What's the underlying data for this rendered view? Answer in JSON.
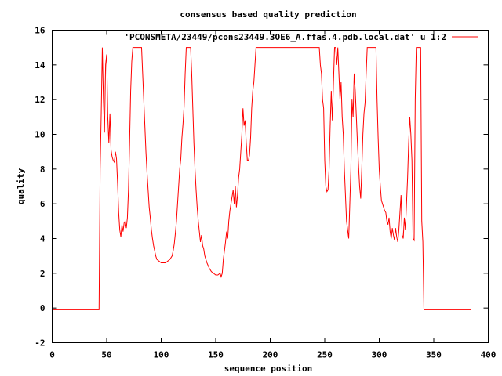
{
  "chart_data": {
    "type": "line",
    "title": "consensus based quality prediction",
    "xlabel": "sequence position",
    "ylabel": "quality",
    "xlim": [
      0,
      400
    ],
    "ylim": [
      -2,
      16
    ],
    "xticks": [
      0,
      50,
      100,
      150,
      200,
      250,
      300,
      350,
      400
    ],
    "yticks": [
      -2,
      0,
      2,
      4,
      6,
      8,
      10,
      12,
      14,
      16
    ],
    "grid": false,
    "legend_position": "top-right",
    "series": [
      {
        "name": "'PCONSMETA/23449/pcons23449.3OE6_A.ffas.4.pdb.local.dat' u 1:2",
        "color": "#ff0000",
        "points": [
          [
            1,
            -0.1
          ],
          [
            43,
            -0.1
          ],
          [
            44,
            8.0
          ],
          [
            45,
            11.2
          ],
          [
            46,
            15.0
          ],
          [
            47,
            12.0
          ],
          [
            48,
            10.1
          ],
          [
            49,
            14.0
          ],
          [
            50,
            14.6
          ],
          [
            51,
            11.0
          ],
          [
            52,
            9.5
          ],
          [
            53,
            11.2
          ],
          [
            54,
            9.1
          ],
          [
            55,
            8.7
          ],
          [
            56,
            8.5
          ],
          [
            57,
            8.4
          ],
          [
            58,
            9.0
          ],
          [
            59,
            8.6
          ],
          [
            60,
            7.2
          ],
          [
            61,
            5.5
          ],
          [
            62,
            4.5
          ],
          [
            63,
            4.1
          ],
          [
            64,
            4.8
          ],
          [
            65,
            4.4
          ],
          [
            66,
            4.9
          ],
          [
            67,
            5.0
          ],
          [
            68,
            4.6
          ],
          [
            69,
            5.2
          ],
          [
            70,
            6.8
          ],
          [
            71,
            9.5
          ],
          [
            72,
            12.5
          ],
          [
            73,
            14.2
          ],
          [
            74,
            15.0
          ],
          [
            77,
            15.0
          ],
          [
            80,
            15.0
          ],
          [
            82,
            15.0
          ],
          [
            83,
            13.5
          ],
          [
            84,
            12.0
          ],
          [
            85,
            10.5
          ],
          [
            86,
            9.0
          ],
          [
            87,
            7.8
          ],
          [
            88,
            6.8
          ],
          [
            89,
            5.8
          ],
          [
            90,
            5.2
          ],
          [
            91,
            4.5
          ],
          [
            92,
            4.0
          ],
          [
            93,
            3.6
          ],
          [
            94,
            3.3
          ],
          [
            95,
            3.0
          ],
          [
            96,
            2.8
          ],
          [
            98,
            2.7
          ],
          [
            100,
            2.6
          ],
          [
            102,
            2.6
          ],
          [
            104,
            2.6
          ],
          [
            106,
            2.7
          ],
          [
            108,
            2.8
          ],
          [
            110,
            3.0
          ],
          [
            111,
            3.3
          ],
          [
            112,
            3.7
          ],
          [
            113,
            4.3
          ],
          [
            114,
            5.0
          ],
          [
            115,
            6.0
          ],
          [
            116,
            7.0
          ],
          [
            117,
            8.0
          ],
          [
            118,
            8.6
          ],
          [
            119,
            9.8
          ],
          [
            120,
            10.6
          ],
          [
            121,
            11.6
          ],
          [
            122,
            13.5
          ],
          [
            123,
            15.0
          ],
          [
            125,
            15.0
          ],
          [
            127,
            15.0
          ],
          [
            128,
            13.5
          ],
          [
            129,
            11.5
          ],
          [
            130,
            9.5
          ],
          [
            131,
            8.0
          ],
          [
            132,
            6.8
          ],
          [
            133,
            5.8
          ],
          [
            134,
            5.0
          ],
          [
            135,
            4.4
          ],
          [
            136,
            3.8
          ],
          [
            137,
            4.2
          ],
          [
            138,
            3.6
          ],
          [
            139,
            3.4
          ],
          [
            140,
            3.0
          ],
          [
            142,
            2.6
          ],
          [
            144,
            2.3
          ],
          [
            146,
            2.1
          ],
          [
            148,
            2.0
          ],
          [
            150,
            1.9
          ],
          [
            152,
            1.9
          ],
          [
            154,
            2.0
          ],
          [
            155,
            1.8
          ],
          [
            156,
            2.0
          ],
          [
            157,
            2.8
          ],
          [
            158,
            3.3
          ],
          [
            159,
            3.8
          ],
          [
            160,
            4.4
          ],
          [
            161,
            4.0
          ],
          [
            162,
            5.0
          ],
          [
            163,
            5.6
          ],
          [
            164,
            6.0
          ],
          [
            165,
            6.4
          ],
          [
            166,
            6.8
          ],
          [
            167,
            6.0
          ],
          [
            168,
            7.0
          ],
          [
            169,
            5.8
          ],
          [
            170,
            6.5
          ],
          [
            171,
            7.5
          ],
          [
            172,
            8.0
          ],
          [
            173,
            9.0
          ],
          [
            174,
            10.0
          ],
          [
            175,
            11.5
          ],
          [
            176,
            10.5
          ],
          [
            177,
            10.8
          ],
          [
            178,
            9.5
          ],
          [
            179,
            8.5
          ],
          [
            180,
            8.5
          ],
          [
            181,
            8.8
          ],
          [
            182,
            9.8
          ],
          [
            183,
            11.5
          ],
          [
            184,
            12.5
          ],
          [
            185,
            13.0
          ],
          [
            186,
            14.0
          ],
          [
            187,
            15.0
          ],
          [
            190,
            15.0
          ],
          [
            200,
            15.0
          ],
          [
            210,
            15.0
          ],
          [
            220,
            15.0
          ],
          [
            230,
            15.0
          ],
          [
            240,
            15.0
          ],
          [
            245,
            15.0
          ],
          [
            246,
            14.0
          ],
          [
            247,
            13.5
          ],
          [
            248,
            12.0
          ],
          [
            249,
            11.5
          ],
          [
            250,
            8.5
          ],
          [
            251,
            7.0
          ],
          [
            252,
            6.7
          ],
          [
            253,
            6.8
          ],
          [
            254,
            8.0
          ],
          [
            255,
            10.5
          ],
          [
            256,
            12.5
          ],
          [
            257,
            10.8
          ],
          [
            258,
            13.0
          ],
          [
            259,
            15.0
          ],
          [
            260,
            15.0
          ],
          [
            261,
            14.0
          ],
          [
            262,
            15.0
          ],
          [
            263,
            13.5
          ],
          [
            264,
            12.0
          ],
          [
            265,
            13.0
          ],
          [
            266,
            11.0
          ],
          [
            267,
            10.0
          ],
          [
            268,
            8.0
          ],
          [
            269,
            6.5
          ],
          [
            270,
            5.0
          ],
          [
            271,
            4.5
          ],
          [
            272,
            4.0
          ],
          [
            273,
            6.0
          ],
          [
            274,
            8.0
          ],
          [
            275,
            12.0
          ],
          [
            276,
            11.0
          ],
          [
            277,
            13.5
          ],
          [
            278,
            12.5
          ],
          [
            279,
            11.0
          ],
          [
            280,
            9.5
          ],
          [
            281,
            8.2
          ],
          [
            282,
            7.0
          ],
          [
            283,
            6.3
          ],
          [
            284,
            8.0
          ],
          [
            285,
            10.0
          ],
          [
            286,
            11.2
          ],
          [
            287,
            11.8
          ],
          [
            288,
            13.5
          ],
          [
            289,
            15.0
          ],
          [
            291,
            15.0
          ],
          [
            293,
            15.0
          ],
          [
            295,
            15.0
          ],
          [
            297,
            15.0
          ],
          [
            298,
            12.0
          ],
          [
            299,
            9.8
          ],
          [
            300,
            8.0
          ],
          [
            301,
            7.0
          ],
          [
            302,
            6.2
          ],
          [
            303,
            6.0
          ],
          [
            304,
            5.8
          ],
          [
            305,
            5.6
          ],
          [
            306,
            5.5
          ],
          [
            307,
            5.0
          ],
          [
            308,
            4.8
          ],
          [
            309,
            5.2
          ],
          [
            310,
            4.4
          ],
          [
            311,
            4.0
          ],
          [
            312,
            4.6
          ],
          [
            313,
            4.2
          ],
          [
            314,
            3.9
          ],
          [
            315,
            4.6
          ],
          [
            316,
            4.1
          ],
          [
            317,
            3.8
          ],
          [
            318,
            4.5
          ],
          [
            319,
            5.5
          ],
          [
            320,
            6.5
          ],
          [
            321,
            4.2
          ],
          [
            322,
            4.0
          ],
          [
            323,
            5.2
          ],
          [
            324,
            4.5
          ],
          [
            325,
            6.0
          ],
          [
            326,
            7.5
          ],
          [
            327,
            9.5
          ],
          [
            328,
            11.0
          ],
          [
            329,
            10.0
          ],
          [
            330,
            8.5
          ],
          [
            331,
            4.0
          ],
          [
            332,
            3.9
          ],
          [
            333,
            12.0
          ],
          [
            334,
            15.0
          ],
          [
            336,
            15.0
          ],
          [
            338,
            15.0
          ],
          [
            339,
            5.0
          ],
          [
            340,
            3.8
          ],
          [
            341,
            -0.1
          ],
          [
            384,
            -0.1
          ]
        ]
      }
    ]
  }
}
